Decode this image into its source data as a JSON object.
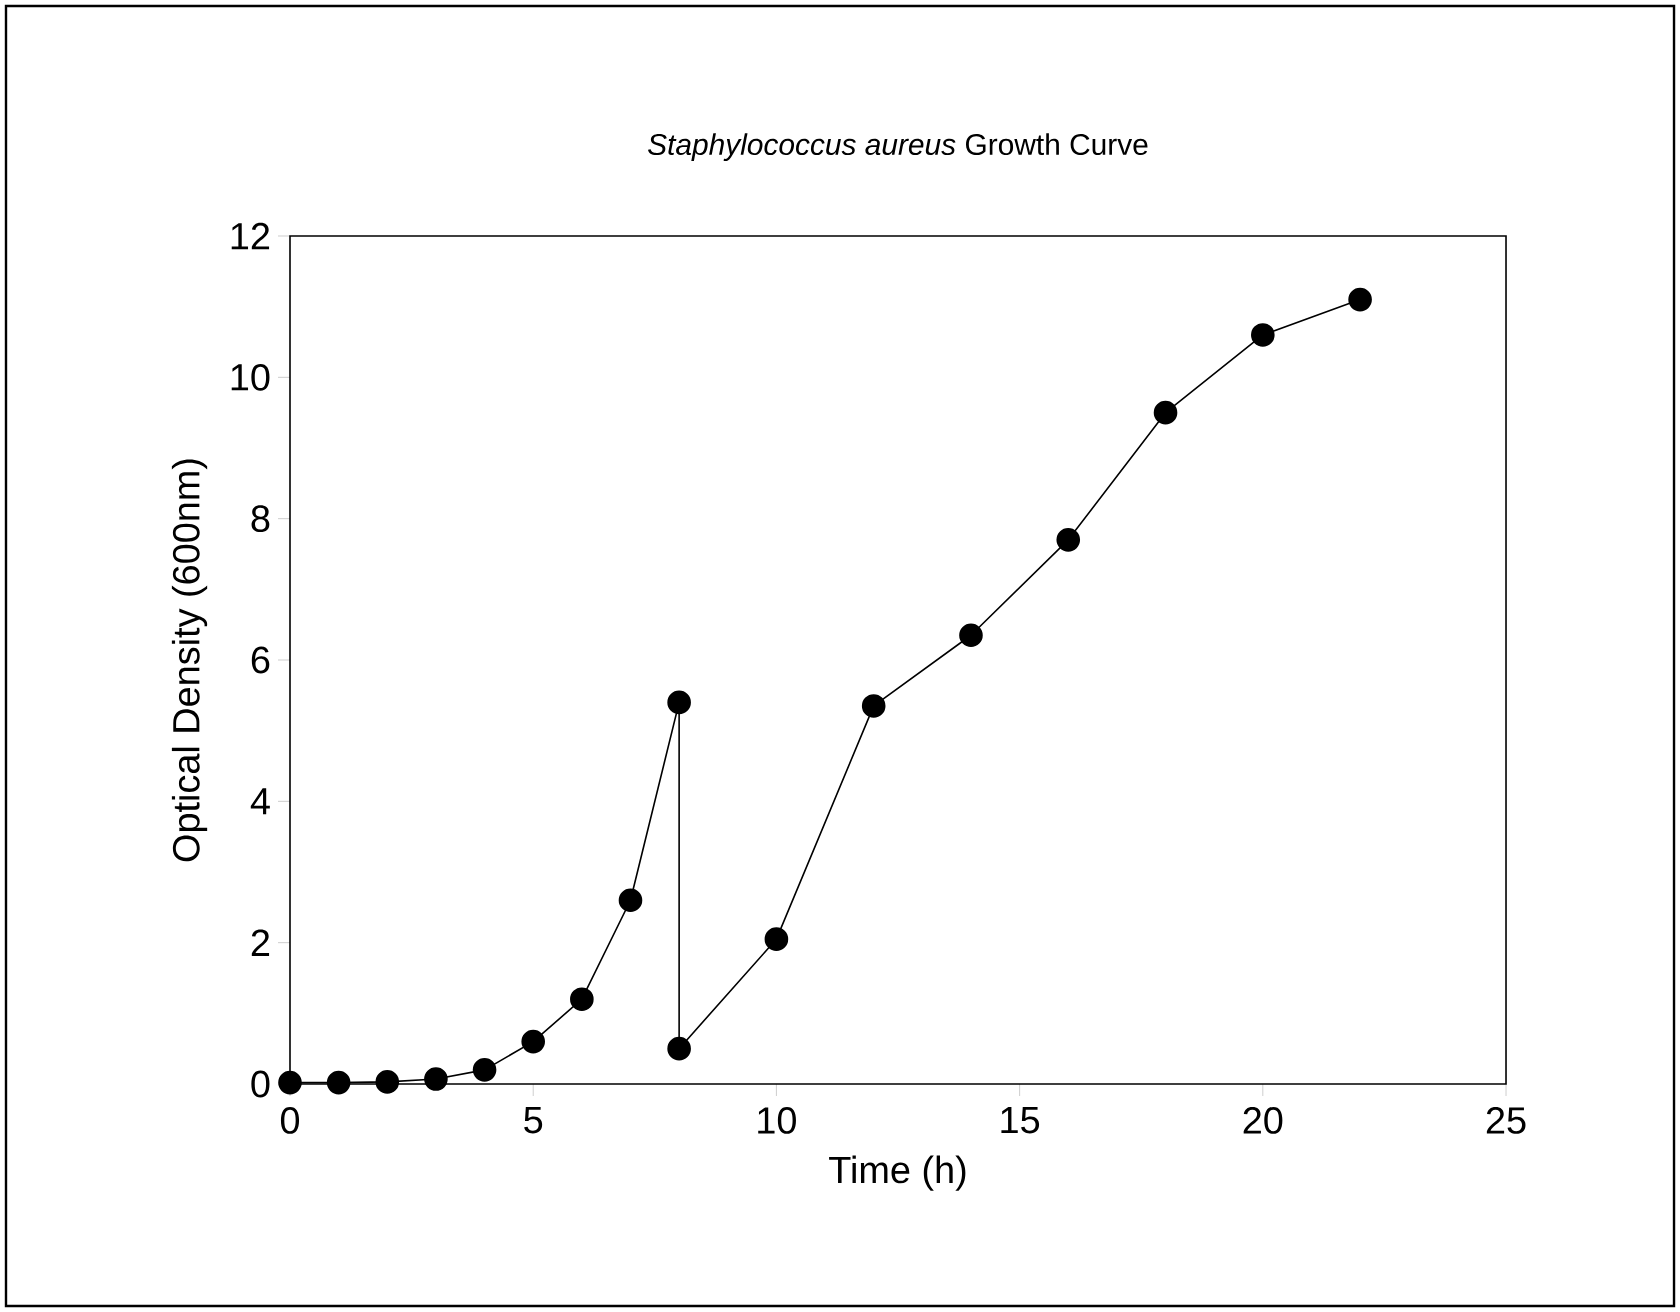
{
  "chart_data": {
    "type": "line",
    "title": "*Staphylococcus aureus* Growth Curve",
    "xlabel": "Time (h)",
    "ylabel": "Optical Density (600nm)",
    "x": [
      0,
      1,
      2,
      3,
      4,
      5,
      6,
      7,
      8,
      8,
      10,
      12,
      14,
      16,
      18,
      20,
      22
    ],
    "series": [
      {
        "color": "#000000",
        "values": [
          0.02,
          0.02,
          0.03,
          0.07,
          0.2,
          0.6,
          1.2,
          2.6,
          5.4,
          0.5,
          2.05,
          5.35,
          6.35,
          7.7,
          9.5,
          10.6,
          11.1
        ]
      }
    ],
    "xlim": [
      0,
      25
    ],
    "xticks": [
      0,
      5,
      10,
      15,
      20,
      25
    ],
    "ylim": [
      0,
      12
    ],
    "yticks": [
      0,
      2,
      4,
      6,
      8,
      10,
      12
    ],
    "grid": false,
    "marker": "circle",
    "line_style": "solid"
  }
}
